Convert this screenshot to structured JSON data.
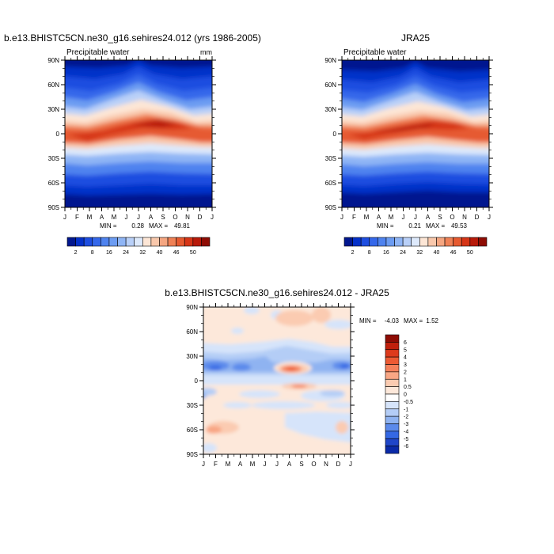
{
  "figure": {
    "panel_left_title": "b.e13.BHISTC5CN.ne30_g16.sehires24.012 (yrs 1986-2005)",
    "panel_right_title": "JRA25",
    "panel_bottom_title": "b.e13.BHISTC5CN.ne30_g16.sehires24.012 - JRA25"
  },
  "chart_data": [
    {
      "type": "heatmap",
      "title": "b.e13.BHISTC5CN.ne30_g16.sehires24.012 (yrs 1986-2005)",
      "subtitle": "Precipitable water",
      "units": "mm",
      "x_tick_labels": [
        "J",
        "F",
        "M",
        "A",
        "M",
        "J",
        "J",
        "A",
        "S",
        "O",
        "N",
        "D",
        "J"
      ],
      "y_tick_labels": [
        "90N",
        "60N",
        "30N",
        "0",
        "30S",
        "60S",
        "90S"
      ],
      "ylim": [
        -90,
        90
      ],
      "stats": {
        "min_label": "MIN =",
        "min": "0.28",
        "max_label": "MAX =",
        "max": "49.81"
      },
      "colorbar": {
        "orientation": "horizontal",
        "tick_labels": [
          "2",
          "8",
          "16",
          "24",
          "32",
          "40",
          "46",
          "50"
        ],
        "colors": [
          "#02178f",
          "#0531c9",
          "#1e4ee0",
          "#3568ea",
          "#4f83ef",
          "#6c9cf2",
          "#8fb5f5",
          "#b9d0f8",
          "#dde9fb",
          "#fde6d6",
          "#f9c8ac",
          "#f5a681",
          "#ef8156",
          "#e65a30",
          "#d63517",
          "#b81a0a",
          "#8e0c04"
        ]
      }
    },
    {
      "type": "heatmap",
      "title": "JRA25",
      "subtitle": "Precipitable water",
      "x_tick_labels": [
        "J",
        "F",
        "M",
        "A",
        "M",
        "J",
        "J",
        "A",
        "S",
        "O",
        "N",
        "D",
        "J"
      ],
      "y_tick_labels": [
        "90N",
        "60N",
        "30N",
        "0",
        "30S",
        "60S",
        "90S"
      ],
      "ylim": [
        -90,
        90
      ],
      "stats": {
        "min_label": "MIN =",
        "min": "0.21",
        "max_label": "MAX =",
        "max": "49.53"
      },
      "colorbar": {
        "orientation": "horizontal",
        "tick_labels": [
          "2",
          "8",
          "16",
          "24",
          "32",
          "40",
          "46",
          "50"
        ],
        "colors": [
          "#02178f",
          "#0531c9",
          "#1e4ee0",
          "#3568ea",
          "#4f83ef",
          "#6c9cf2",
          "#8fb5f5",
          "#b9d0f8",
          "#dde9fb",
          "#fde6d6",
          "#f9c8ac",
          "#f5a681",
          "#ef8156",
          "#e65a30",
          "#d63517",
          "#b81a0a",
          "#8e0c04"
        ]
      }
    },
    {
      "type": "heatmap",
      "title": "b.e13.BHISTC5CN.ne30_g16.sehires24.012 - JRA25",
      "x_tick_labels": [
        "J",
        "F",
        "M",
        "A",
        "M",
        "J",
        "J",
        "A",
        "S",
        "O",
        "N",
        "D",
        "J"
      ],
      "y_tick_labels": [
        "90N",
        "60N",
        "30N",
        "0",
        "30S",
        "60S",
        "90S"
      ],
      "ylim": [
        -90,
        90
      ],
      "stats": {
        "min_label": "MIN =",
        "min": "-4.03",
        "max_label": "MAX =",
        "max": "1.52"
      },
      "colorbar": {
        "orientation": "vertical",
        "tick_labels": [
          "6",
          "5",
          "4",
          "3",
          "2",
          "1",
          "0.5",
          "0",
          "-0.5",
          "-1",
          "-2",
          "-3",
          "-4",
          "-5",
          "-6"
        ],
        "colors": [
          "#8e0c04",
          "#c0200c",
          "#dd3a1c",
          "#ec5a33",
          "#f4805a",
          "#f8a684",
          "#fbcbb1",
          "#fde8da",
          "#ffffff",
          "#d6e4fa",
          "#b4cdf6",
          "#8fb3f1",
          "#5b8aeb",
          "#3468e4",
          "#1f46c9",
          "#0a2aa8"
        ]
      }
    }
  ]
}
